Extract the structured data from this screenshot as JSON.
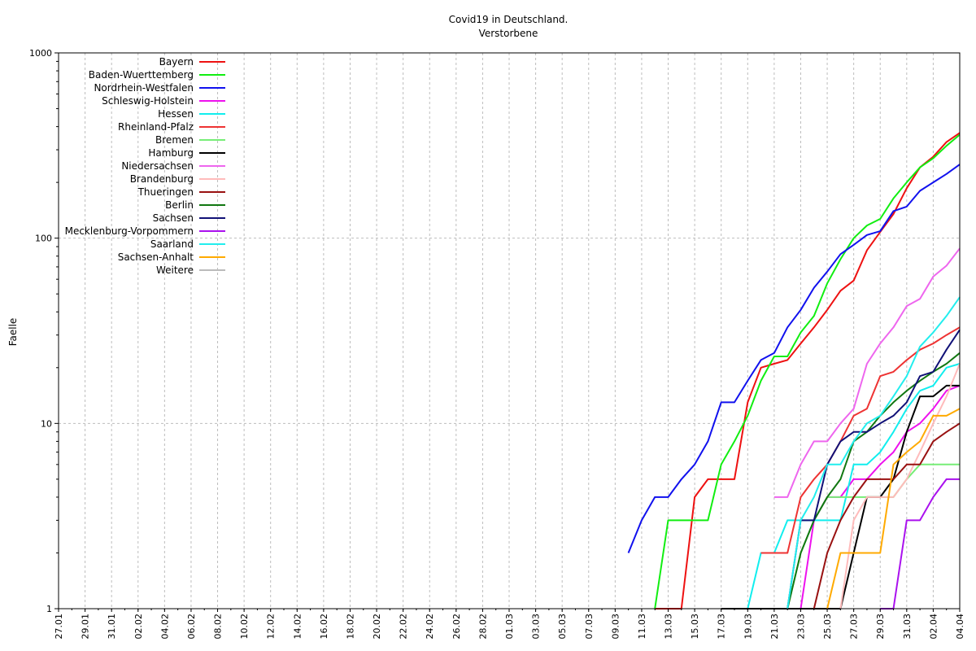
{
  "chart_data": {
    "type": "line",
    "title": "Covid19 in Deutschland.",
    "subtitle": "Verstorbene",
    "xlabel": "",
    "ylabel": "Faelle",
    "yscale": "log",
    "ylim": [
      1,
      1000
    ],
    "yticks": [
      "1",
      "10",
      "100",
      "1000"
    ],
    "grid": true,
    "legend_position": "top-left",
    "x_dates": [
      "27.01",
      "28.01",
      "29.01",
      "30.01",
      "31.01",
      "01.02",
      "02.02",
      "03.02",
      "04.02",
      "05.02",
      "06.02",
      "07.02",
      "08.02",
      "09.02",
      "10.02",
      "11.02",
      "12.02",
      "13.02",
      "14.02",
      "15.02",
      "16.02",
      "17.02",
      "18.02",
      "19.02",
      "20.02",
      "21.02",
      "22.02",
      "23.02",
      "24.02",
      "25.02",
      "26.02",
      "27.02",
      "28.02",
      "29.02",
      "01.03",
      "02.03",
      "03.03",
      "04.03",
      "05.03",
      "06.03",
      "07.03",
      "08.03",
      "09.03",
      "10.03",
      "11.03",
      "12.03",
      "13.03",
      "14.03",
      "15.03",
      "16.03",
      "17.03",
      "18.03",
      "19.03",
      "20.03",
      "21.03",
      "22.03",
      "23.03",
      "24.03",
      "25.03",
      "26.03",
      "27.03",
      "28.03",
      "29.03",
      "30.03",
      "31.03",
      "01.04",
      "02.04",
      "03.04",
      "04.04"
    ],
    "x_tick_labels": [
      "27.01",
      "29.01",
      "31.01",
      "02.02",
      "04.02",
      "06.02",
      "08.02",
      "10.02",
      "12.02",
      "14.02",
      "16.02",
      "18.02",
      "20.02",
      "22.02",
      "24.02",
      "26.02",
      "28.02",
      "01.03",
      "03.03",
      "05.03",
      "07.03",
      "09.03",
      "11.03",
      "13.03",
      "15.03",
      "17.03",
      "19.03",
      "21.03",
      "23.03",
      "25.03",
      "27.03",
      "29.03",
      "31.03",
      "02.04",
      "04.04"
    ],
    "series": [
      {
        "name": "Bayern",
        "color": "#ee1111",
        "points": [
          [
            "12.03",
            1
          ],
          [
            "13.03",
            1
          ],
          [
            "14.03",
            1
          ],
          [
            "15.03",
            4
          ],
          [
            "16.03",
            5
          ],
          [
            "17.03",
            5
          ],
          [
            "18.03",
            5
          ],
          [
            "19.03",
            13
          ],
          [
            "20.03",
            20
          ],
          [
            "21.03",
            21
          ],
          [
            "22.03",
            22
          ],
          [
            "23.03",
            27
          ],
          [
            "24.03",
            33
          ],
          [
            "25.03",
            41
          ],
          [
            "26.03",
            52
          ],
          [
            "27.03",
            59
          ],
          [
            "28.03",
            86
          ],
          [
            "29.03",
            108
          ],
          [
            "30.03",
            135
          ],
          [
            "31.03",
            186
          ],
          [
            "01.04",
            241
          ],
          [
            "02.04",
            275
          ],
          [
            "03.04",
            330
          ],
          [
            "04.04",
            370
          ]
        ]
      },
      {
        "name": "Baden-Wuerttemberg",
        "color": "#11ee11",
        "points": [
          [
            "12.03",
            1
          ],
          [
            "13.03",
            3
          ],
          [
            "14.03",
            3
          ],
          [
            "15.03",
            3
          ],
          [
            "16.03",
            3
          ],
          [
            "17.03",
            6
          ],
          [
            "18.03",
            8
          ],
          [
            "19.03",
            11
          ],
          [
            "20.03",
            17
          ],
          [
            "21.03",
            23
          ],
          [
            "22.03",
            23
          ],
          [
            "23.03",
            31
          ],
          [
            "24.03",
            38
          ],
          [
            "25.03",
            57
          ],
          [
            "26.03",
            77
          ],
          [
            "27.03",
            100
          ],
          [
            "28.03",
            117
          ],
          [
            "29.03",
            127
          ],
          [
            "30.03",
            164
          ],
          [
            "31.03",
            200
          ],
          [
            "01.04",
            241
          ],
          [
            "02.04",
            270
          ],
          [
            "03.04",
            315
          ],
          [
            "04.04",
            362
          ]
        ]
      },
      {
        "name": "Nordrhein-Westfalen",
        "color": "#1111ee",
        "points": [
          [
            "10.03",
            2
          ],
          [
            "11.03",
            3
          ],
          [
            "12.03",
            4
          ],
          [
            "13.03",
            4
          ],
          [
            "14.03",
            5
          ],
          [
            "15.03",
            6
          ],
          [
            "16.03",
            8
          ],
          [
            "17.03",
            13
          ],
          [
            "18.03",
            13
          ],
          [
            "19.03",
            17
          ],
          [
            "20.03",
            22
          ],
          [
            "21.03",
            24
          ],
          [
            "22.03",
            33
          ],
          [
            "23.03",
            41
          ],
          [
            "24.03",
            54
          ],
          [
            "25.03",
            66
          ],
          [
            "26.03",
            82
          ],
          [
            "27.03",
            92
          ],
          [
            "28.03",
            104
          ],
          [
            "29.03",
            109
          ],
          [
            "30.03",
            140
          ],
          [
            "31.03",
            148
          ],
          [
            "01.04",
            180
          ],
          [
            "02.04",
            200
          ],
          [
            "03.04",
            222
          ],
          [
            "04.04",
            250
          ]
        ]
      },
      {
        "name": "Schleswig-Holstein",
        "color": "#ee11ee",
        "points": [
          [
            "23.03",
            1
          ],
          [
            "24.03",
            3
          ],
          [
            "25.03",
            4
          ],
          [
            "26.03",
            4
          ],
          [
            "27.03",
            5
          ],
          [
            "28.03",
            5
          ],
          [
            "29.03",
            6
          ],
          [
            "30.03",
            7
          ],
          [
            "31.03",
            9
          ],
          [
            "01.04",
            10
          ],
          [
            "02.04",
            12
          ],
          [
            "03.04",
            15
          ],
          [
            "04.04",
            16
          ]
        ]
      },
      {
        "name": "Hessen",
        "color": "#11eeee",
        "points": [
          [
            "19.03",
            1
          ],
          [
            "20.03",
            2
          ],
          [
            "21.03",
            2
          ],
          [
            "22.03",
            3
          ],
          [
            "23.03",
            3
          ],
          [
            "24.03",
            3
          ],
          [
            "25.03",
            3
          ],
          [
            "26.03",
            3
          ],
          [
            "27.03",
            6
          ],
          [
            "28.03",
            6
          ],
          [
            "29.03",
            7
          ],
          [
            "30.03",
            9
          ],
          [
            "31.03",
            12
          ],
          [
            "01.04",
            15
          ],
          [
            "02.04",
            16
          ],
          [
            "03.04",
            20
          ],
          [
            "04.04",
            21
          ]
        ]
      },
      {
        "name": "Rheinland-Pfalz",
        "color": "#ee3333",
        "points": [
          [
            "20.03",
            2
          ],
          [
            "21.03",
            2
          ],
          [
            "22.03",
            2
          ],
          [
            "23.03",
            4
          ],
          [
            "24.03",
            5
          ],
          [
            "25.03",
            6
          ],
          [
            "26.03",
            8
          ],
          [
            "27.03",
            11
          ],
          [
            "28.03",
            12
          ],
          [
            "29.03",
            18
          ],
          [
            "30.03",
            19
          ],
          [
            "31.03",
            22
          ],
          [
            "01.04",
            25
          ],
          [
            "02.04",
            27
          ],
          [
            "03.04",
            30
          ],
          [
            "04.04",
            33
          ]
        ]
      },
      {
        "name": "Bremen",
        "color": "#77ee77",
        "points": [
          [
            "22.03",
            1
          ],
          [
            "23.03",
            2
          ],
          [
            "24.03",
            3
          ],
          [
            "25.03",
            4
          ],
          [
            "26.03",
            4
          ],
          [
            "27.03",
            4
          ],
          [
            "28.03",
            4
          ],
          [
            "29.03",
            4
          ],
          [
            "30.03",
            4
          ],
          [
            "31.03",
            5
          ],
          [
            "01.04",
            6
          ],
          [
            "02.04",
            6
          ],
          [
            "03.04",
            6
          ],
          [
            "04.04",
            6
          ]
        ]
      },
      {
        "name": "Hamburg",
        "color": "#000000",
        "points": [
          [
            "17.03",
            1
          ],
          [
            "18.03",
            1
          ],
          [
            "19.03",
            1
          ],
          [
            "20.03",
            1
          ],
          [
            "21.03",
            1
          ],
          [
            "22.03",
            1
          ],
          [
            "23.03",
            1
          ],
          [
            "24.03",
            1
          ],
          [
            "25.03",
            1
          ],
          [
            "26.03",
            1
          ],
          [
            "27.03",
            2
          ],
          [
            "28.03",
            4
          ],
          [
            "29.03",
            4
          ],
          [
            "30.03",
            5
          ],
          [
            "31.03",
            9
          ],
          [
            "01.04",
            14
          ],
          [
            "02.04",
            14
          ],
          [
            "03.04",
            16
          ],
          [
            "04.04",
            16
          ]
        ]
      },
      {
        "name": "Niedersachsen",
        "color": "#ee66ee",
        "points": [
          [
            "21.03",
            4
          ],
          [
            "22.03",
            4
          ],
          [
            "23.03",
            6
          ],
          [
            "24.03",
            8
          ],
          [
            "25.03",
            8
          ],
          [
            "26.03",
            10
          ],
          [
            "27.03",
            12
          ],
          [
            "28.03",
            21
          ],
          [
            "29.03",
            27
          ],
          [
            "30.03",
            33
          ],
          [
            "31.03",
            43
          ],
          [
            "01.04",
            47
          ],
          [
            "02.04",
            62
          ],
          [
            "03.04",
            71
          ],
          [
            "04.04",
            88
          ]
        ]
      },
      {
        "name": "Brandenburg",
        "color": "#ffbbbb",
        "points": [
          [
            "26.03",
            1
          ],
          [
            "27.03",
            3
          ],
          [
            "28.03",
            4
          ],
          [
            "29.03",
            4
          ],
          [
            "30.03",
            4
          ],
          [
            "31.03",
            5
          ],
          [
            "01.04",
            7
          ],
          [
            "02.04",
            10
          ],
          [
            "03.04",
            14
          ],
          [
            "04.04",
            21
          ]
        ]
      },
      {
        "name": "Thueringen",
        "color": "#991111",
        "points": [
          [
            "24.03",
            1
          ],
          [
            "25.03",
            2
          ],
          [
            "26.03",
            3
          ],
          [
            "27.03",
            4
          ],
          [
            "28.03",
            5
          ],
          [
            "29.03",
            5
          ],
          [
            "30.03",
            5
          ],
          [
            "31.03",
            6
          ],
          [
            "01.04",
            6
          ],
          [
            "02.04",
            8
          ],
          [
            "03.04",
            9
          ],
          [
            "04.04",
            10
          ]
        ]
      },
      {
        "name": "Berlin",
        "color": "#117711",
        "points": [
          [
            "22.03",
            1
          ],
          [
            "23.03",
            2
          ],
          [
            "24.03",
            3
          ],
          [
            "25.03",
            4
          ],
          [
            "26.03",
            5
          ],
          [
            "27.03",
            8
          ],
          [
            "28.03",
            9
          ],
          [
            "29.03",
            11
          ],
          [
            "30.03",
            13
          ],
          [
            "31.03",
            15
          ],
          [
            "01.04",
            17
          ],
          [
            "02.04",
            19
          ],
          [
            "03.04",
            21
          ],
          [
            "04.04",
            24
          ]
        ]
      },
      {
        "name": "Sachsen",
        "color": "#111177",
        "points": [
          [
            "22.03",
            1
          ],
          [
            "23.03",
            3
          ],
          [
            "24.03",
            3
          ],
          [
            "25.03",
            6
          ],
          [
            "26.03",
            8
          ],
          [
            "27.03",
            9
          ],
          [
            "28.03",
            9
          ],
          [
            "29.03",
            10
          ],
          [
            "30.03",
            11
          ],
          [
            "31.03",
            13
          ],
          [
            "01.04",
            18
          ],
          [
            "02.04",
            19
          ],
          [
            "03.04",
            25
          ],
          [
            "04.04",
            32
          ]
        ]
      },
      {
        "name": "Mecklenburg-Vorpommern",
        "color": "#aa11ee",
        "points": [
          [
            "29.03",
            1
          ],
          [
            "30.03",
            1
          ],
          [
            "31.03",
            3
          ],
          [
            "01.04",
            3
          ],
          [
            "02.04",
            4
          ],
          [
            "03.04",
            5
          ],
          [
            "04.04",
            5
          ]
        ]
      },
      {
        "name": "Saarland",
        "color": "#22eeee",
        "points": [
          [
            "22.03",
            1
          ],
          [
            "23.03",
            3
          ],
          [
            "24.03",
            4
          ],
          [
            "25.03",
            6
          ],
          [
            "26.03",
            6
          ],
          [
            "27.03",
            8
          ],
          [
            "28.03",
            10
          ],
          [
            "29.03",
            11
          ],
          [
            "30.03",
            14
          ],
          [
            "31.03",
            18
          ],
          [
            "01.04",
            26
          ],
          [
            "02.04",
            31
          ],
          [
            "03.04",
            38
          ],
          [
            "04.04",
            48
          ]
        ]
      },
      {
        "name": "Sachsen-Anhalt",
        "color": "#ffaa00",
        "points": [
          [
            "25.03",
            1
          ],
          [
            "26.03",
            2
          ],
          [
            "27.03",
            2
          ],
          [
            "28.03",
            2
          ],
          [
            "29.03",
            2
          ],
          [
            "30.03",
            6
          ],
          [
            "31.03",
            7
          ],
          [
            "01.04",
            8
          ],
          [
            "02.04",
            11
          ],
          [
            "03.04",
            11
          ],
          [
            "04.04",
            12
          ]
        ]
      },
      {
        "name": "Weitere",
        "color": "#bbbbbb",
        "points": []
      }
    ]
  }
}
